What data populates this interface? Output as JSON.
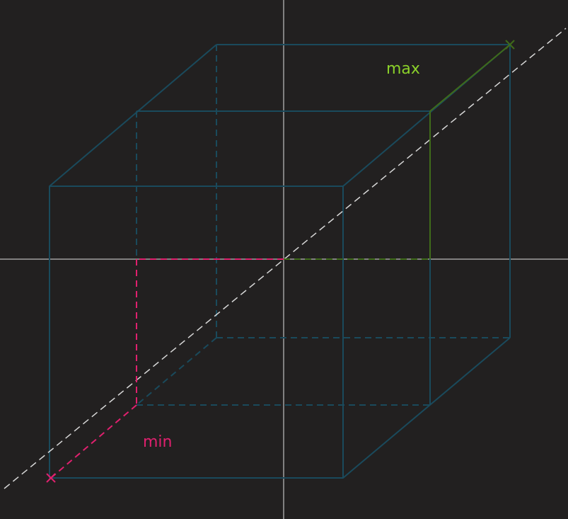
{
  "labels": {
    "max": "max",
    "min": "min"
  },
  "colors": {
    "background": "#222020",
    "axes": "#e0e0e0",
    "box": "#1a4a5c",
    "max": "#3f6b1a",
    "max_text": "#8bd12a",
    "min": "#e0206e",
    "diagonal": "#d8d8d8"
  },
  "markers": {
    "max_corner": "x-mark",
    "min_corner": "x-mark"
  }
}
